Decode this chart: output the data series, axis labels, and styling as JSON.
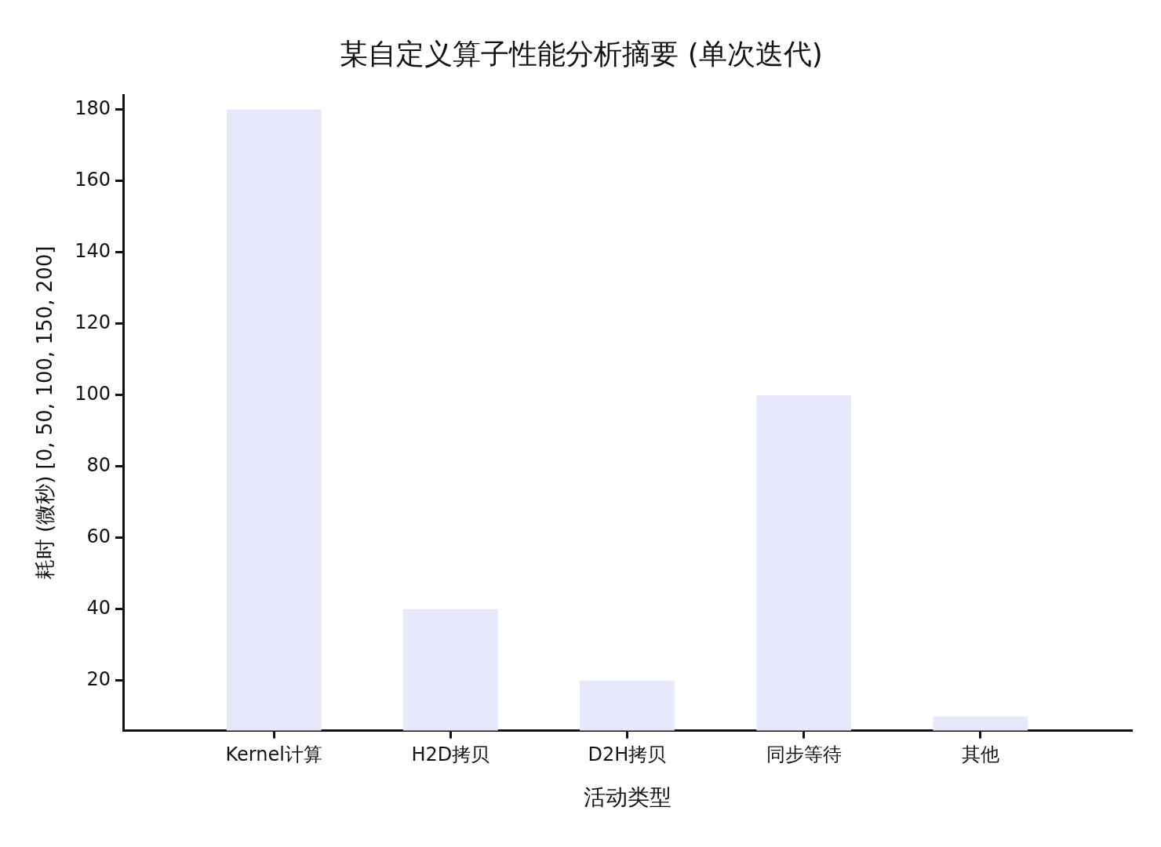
{
  "chart_data": {
    "type": "bar",
    "title": "某自定义算子性能分析摘要 (单次迭代)",
    "xlabel": "活动类型",
    "ylabel": "耗时 (微秒) [0, 50, 100, 150, 200]",
    "categories": [
      "Kernel计算",
      "H2D拷贝",
      "D2H拷贝",
      "同步等待",
      "其他"
    ],
    "values": [
      180,
      40,
      20,
      100,
      10
    ],
    "color": "#e8e8fc",
    "ylim": [
      6,
      184
    ],
    "yticks": [
      20,
      40,
      60,
      80,
      100,
      120,
      140,
      160,
      180
    ],
    "grid": false,
    "legend": false
  }
}
